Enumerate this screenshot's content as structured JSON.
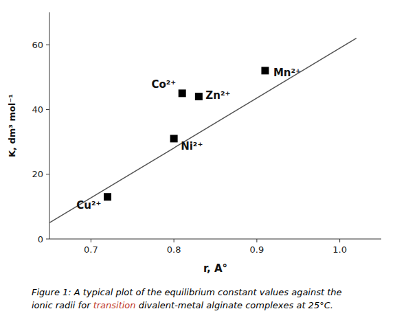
{
  "chart_data": {
    "type": "scatter",
    "x_label": "r, A°",
    "y_label": "K, dm³ mol⁻¹",
    "xlim": [
      0.65,
      1.05
    ],
    "ylim": [
      0,
      70
    ],
    "xticks": [
      0.7,
      0.8,
      0.9,
      {
        "value": 1.0,
        "label": "1.0"
      }
    ],
    "yticks": [
      0,
      20,
      40,
      60
    ],
    "series": [
      {
        "type": "line",
        "color": "#555555",
        "x": [
          0.65,
          1.02
        ],
        "values": [
          5.0,
          62.0
        ]
      },
      {
        "type": "scatter",
        "color": "black",
        "marker": "square",
        "x": [
          0.72,
          0.8,
          0.81,
          0.83,
          0.91
        ],
        "values": [
          13.0,
          31.0,
          45.0,
          44.0,
          52.0
        ],
        "labels": [
          "Cu²⁺",
          "Ni²⁺",
          "Co²⁺",
          "Zn²⁺",
          "Mn²⁺"
        ]
      }
    ],
    "caption": [
      [
        {
          "text": "Figure 1: A typical plot of the equilibrium constant values against the",
          "color": "black"
        }
      ],
      [
        {
          "text": "ionic radii for ",
          "color": "black"
        },
        {
          "text": "transition",
          "color": "#c0392b"
        },
        {
          "text": " divalent-metal alginate complexes at 25°C.",
          "color": "black"
        }
      ]
    ]
  }
}
